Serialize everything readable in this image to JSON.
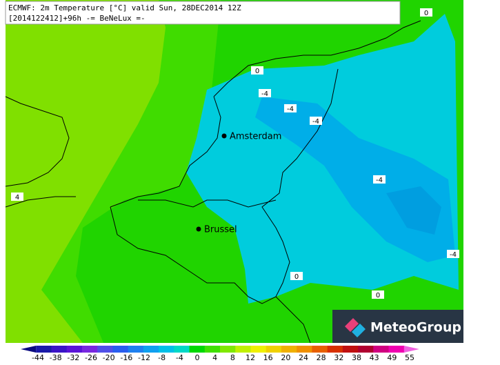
{
  "header": {
    "line1": "ECMWF: 2m Temperature [°C] valid Sun, 28DEC2014 12Z",
    "line2": "[2014122412]+96h -= BeNeLux =-"
  },
  "cities": [
    {
      "label": "Amsterdam"
    },
    {
      "label": "Brussel"
    }
  ],
  "contour_labels": [
    "0",
    "0",
    "-4",
    "-4",
    "-4",
    "-4",
    "-4",
    "0",
    "0",
    "4"
  ],
  "legend": {
    "colors": [
      "#0a0a80",
      "#1a1aa8",
      "#3a14c8",
      "#5a14d8",
      "#7828e0",
      "#5050e8",
      "#2a5ef0",
      "#1e80f0",
      "#10a0f0",
      "#00c0e8",
      "#00d8c8",
      "#00d800",
      "#40e000",
      "#80e800",
      "#c0f000",
      "#f0f000",
      "#f0d000",
      "#f0b000",
      "#f09000",
      "#e86000",
      "#d83000",
      "#c01010",
      "#b00030",
      "#d00080",
      "#f000b0",
      "#f060e0"
    ],
    "labels": [
      "-44",
      "-38",
      "-32",
      "-26",
      "-20",
      "-16",
      "-12",
      "-8",
      "-4",
      "0",
      "4",
      "8",
      "12",
      "16",
      "20",
      "24",
      "28",
      "32",
      "38",
      "43",
      "49",
      "55"
    ]
  },
  "logo": {
    "text": "MeteoGroup"
  }
}
